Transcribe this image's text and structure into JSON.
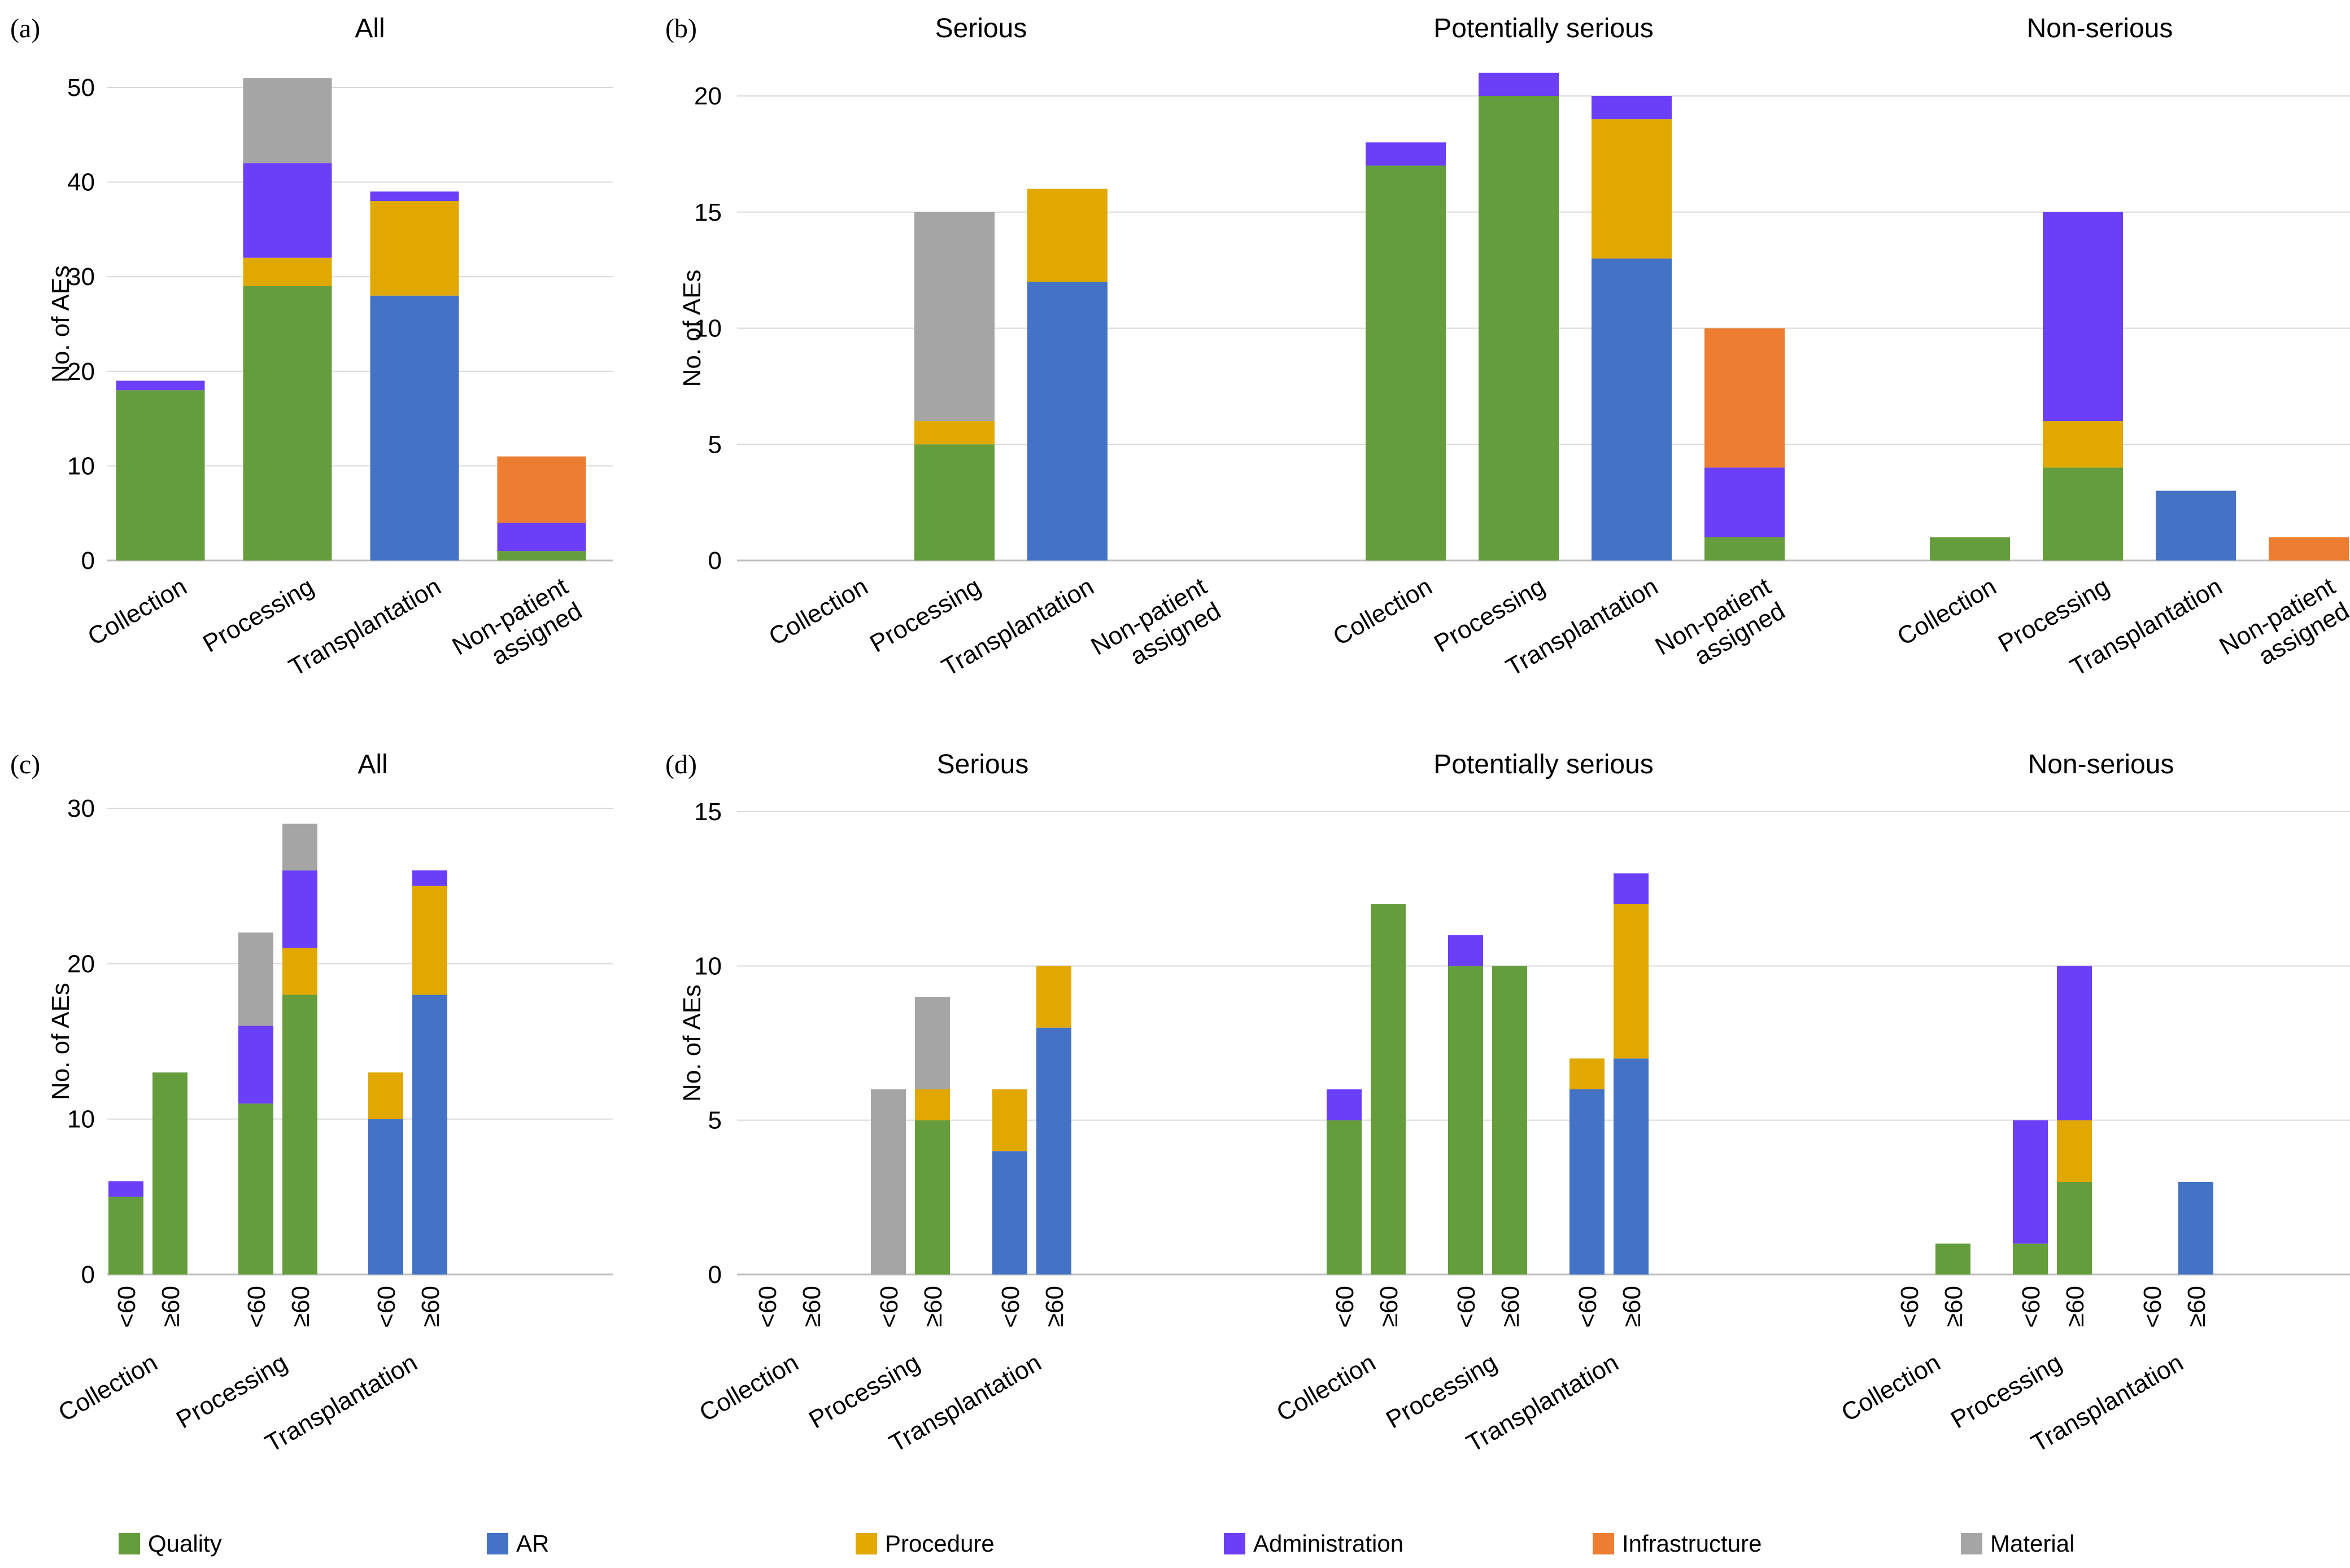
{
  "colors": {
    "Quality": "#659d3c",
    "AR": "#4472c4",
    "Procedure": "#e0a800",
    "Administration": "#6b3ff7",
    "Infrastructure": "#ed7d31",
    "Material": "#a5a5a5"
  },
  "legend": [
    "Quality",
    "AR",
    "Procedure",
    "Administration",
    "Infrastructure",
    "Material"
  ],
  "y_axis_label": "No. of AEs",
  "chart_data": [
    {
      "panel": "(a)",
      "type": "bar",
      "stacked": true,
      "xlabel": "",
      "ylabel": "No. of AEs",
      "ylim": [
        0,
        50
      ],
      "yticks": [
        0,
        10,
        20,
        30,
        40,
        50
      ],
      "groups": [
        {
          "title": "All",
          "categories": [
            "Collection",
            "Processing",
            "Transplantation",
            "Non-patient assigned"
          ],
          "bars": [
            {
              "category": "Collection",
              "segments": {
                "Quality": 18,
                "Administration": 1
              }
            },
            {
              "category": "Processing",
              "segments": {
                "Quality": 29,
                "Procedure": 3,
                "Administration": 10,
                "Material": 9
              }
            },
            {
              "category": "Transplantation",
              "segments": {
                "AR": 28,
                "Procedure": 10,
                "Administration": 1
              }
            },
            {
              "category": "Non-patient assigned",
              "segments": {
                "Quality": 1,
                "Administration": 3,
                "Infrastructure": 7
              }
            }
          ]
        }
      ]
    },
    {
      "panel": "(b)",
      "type": "bar",
      "stacked": true,
      "xlabel": "",
      "ylabel": "No. of AEs",
      "ylim": [
        0,
        20
      ],
      "yticks": [
        0,
        5,
        10,
        15,
        20
      ],
      "groups": [
        {
          "title": "Serious",
          "categories": [
            "Collection",
            "Processing",
            "Transplantation",
            "Non-patient assigned"
          ],
          "bars": [
            {
              "category": "Collection",
              "segments": {}
            },
            {
              "category": "Processing",
              "segments": {
                "Quality": 5,
                "Procedure": 1,
                "Material": 9
              }
            },
            {
              "category": "Transplantation",
              "segments": {
                "AR": 12,
                "Procedure": 4
              }
            },
            {
              "category": "Non-patient assigned",
              "segments": {}
            }
          ]
        },
        {
          "title": "Potentially serious",
          "categories": [
            "Collection",
            "Processing",
            "Transplantation",
            "Non-patient assigned"
          ],
          "bars": [
            {
              "category": "Collection",
              "segments": {
                "Quality": 17,
                "Administration": 1
              }
            },
            {
              "category": "Processing",
              "segments": {
                "Quality": 20,
                "Administration": 1
              }
            },
            {
              "category": "Transplantation",
              "segments": {
                "AR": 13,
                "Procedure": 6,
                "Administration": 1
              }
            },
            {
              "category": "Non-patient assigned",
              "segments": {
                "Quality": 1,
                "Administration": 3,
                "Infrastructure": 6
              }
            }
          ]
        },
        {
          "title": "Non-serious",
          "categories": [
            "Collection",
            "Processing",
            "Transplantation",
            "Non-patient assigned"
          ],
          "bars": [
            {
              "category": "Collection",
              "segments": {
                "Quality": 1
              }
            },
            {
              "category": "Processing",
              "segments": {
                "Quality": 4,
                "Procedure": 2,
                "Administration": 9
              }
            },
            {
              "category": "Transplantation",
              "segments": {
                "AR": 3
              }
            },
            {
              "category": "Non-patient assigned",
              "segments": {
                "Infrastructure": 1
              }
            }
          ]
        }
      ]
    },
    {
      "panel": "(c)",
      "type": "bar",
      "stacked": true,
      "xlabel": "",
      "ylabel": "No. of AEs",
      "ylim": [
        0,
        30
      ],
      "yticks": [
        0,
        10,
        20,
        30
      ],
      "groups": [
        {
          "title": "All",
          "categories": [
            "Collection",
            "Processing",
            "Transplantation"
          ],
          "bars": [
            {
              "category": "Collection",
              "age": "<60",
              "segments": {
                "Quality": 5,
                "Administration": 1
              }
            },
            {
              "category": "Collection",
              "age": "≥60",
              "segments": {
                "Quality": 13
              }
            },
            {
              "category": "Processing",
              "age": "<60",
              "segments": {
                "Quality": 11,
                "Administration": 5,
                "Material": 6
              }
            },
            {
              "category": "Processing",
              "age": "≥60",
              "segments": {
                "Quality": 18,
                "Procedure": 3,
                "Administration": 5,
                "Material": 3
              }
            },
            {
              "category": "Transplantation",
              "age": "<60",
              "segments": {
                "AR": 10,
                "Procedure": 3
              }
            },
            {
              "category": "Transplantation",
              "age": "≥60",
              "segments": {
                "AR": 18,
                "Procedure": 7,
                "Administration": 1
              }
            }
          ]
        }
      ]
    },
    {
      "panel": "(d)",
      "type": "bar",
      "stacked": true,
      "xlabel": "",
      "ylabel": "No. of AEs",
      "ylim": [
        0,
        15
      ],
      "yticks": [
        0,
        5,
        10,
        15
      ],
      "groups": [
        {
          "title": "Serious",
          "categories": [
            "Collection",
            "Processing",
            "Transplantation"
          ],
          "bars": [
            {
              "category": "Collection",
              "age": "<60",
              "segments": {}
            },
            {
              "category": "Collection",
              "age": "≥60",
              "segments": {}
            },
            {
              "category": "Processing",
              "age": "<60",
              "segments": {
                "Material": 6
              }
            },
            {
              "category": "Processing",
              "age": "≥60",
              "segments": {
                "Quality": 5,
                "Procedure": 1,
                "Material": 3
              }
            },
            {
              "category": "Transplantation",
              "age": "<60",
              "segments": {
                "AR": 4,
                "Procedure": 2
              }
            },
            {
              "category": "Transplantation",
              "age": "≥60",
              "segments": {
                "AR": 8,
                "Procedure": 2
              }
            }
          ]
        },
        {
          "title": "Potentially serious",
          "categories": [
            "Collection",
            "Processing",
            "Transplantation"
          ],
          "bars": [
            {
              "category": "Collection",
              "age": "<60",
              "segments": {
                "Quality": 5,
                "Administration": 1
              }
            },
            {
              "category": "Collection",
              "age": "≥60",
              "segments": {
                "Quality": 12
              }
            },
            {
              "category": "Processing",
              "age": "<60",
              "segments": {
                "Quality": 10,
                "Administration": 1
              }
            },
            {
              "category": "Processing",
              "age": "≥60",
              "segments": {
                "Quality": 10
              }
            },
            {
              "category": "Transplantation",
              "age": "<60",
              "segments": {
                "AR": 6,
                "Procedure": 1
              }
            },
            {
              "category": "Transplantation",
              "age": "≥60",
              "segments": {
                "AR": 7,
                "Procedure": 5,
                "Administration": 1
              }
            }
          ]
        },
        {
          "title": "Non-serious",
          "categories": [
            "Collection",
            "Processing",
            "Transplantation"
          ],
          "bars": [
            {
              "category": "Collection",
              "age": "<60",
              "segments": {}
            },
            {
              "category": "Collection",
              "age": "≥60",
              "segments": {
                "Quality": 1
              }
            },
            {
              "category": "Processing",
              "age": "<60",
              "segments": {
                "Quality": 1,
                "Administration": 4
              }
            },
            {
              "category": "Processing",
              "age": "≥60",
              "segments": {
                "Quality": 3,
                "Procedure": 2,
                "Administration": 5
              }
            },
            {
              "category": "Transplantation",
              "age": "<60",
              "segments": {}
            },
            {
              "category": "Transplantation",
              "age": "≥60",
              "segments": {
                "AR": 3
              }
            }
          ]
        }
      ]
    }
  ]
}
